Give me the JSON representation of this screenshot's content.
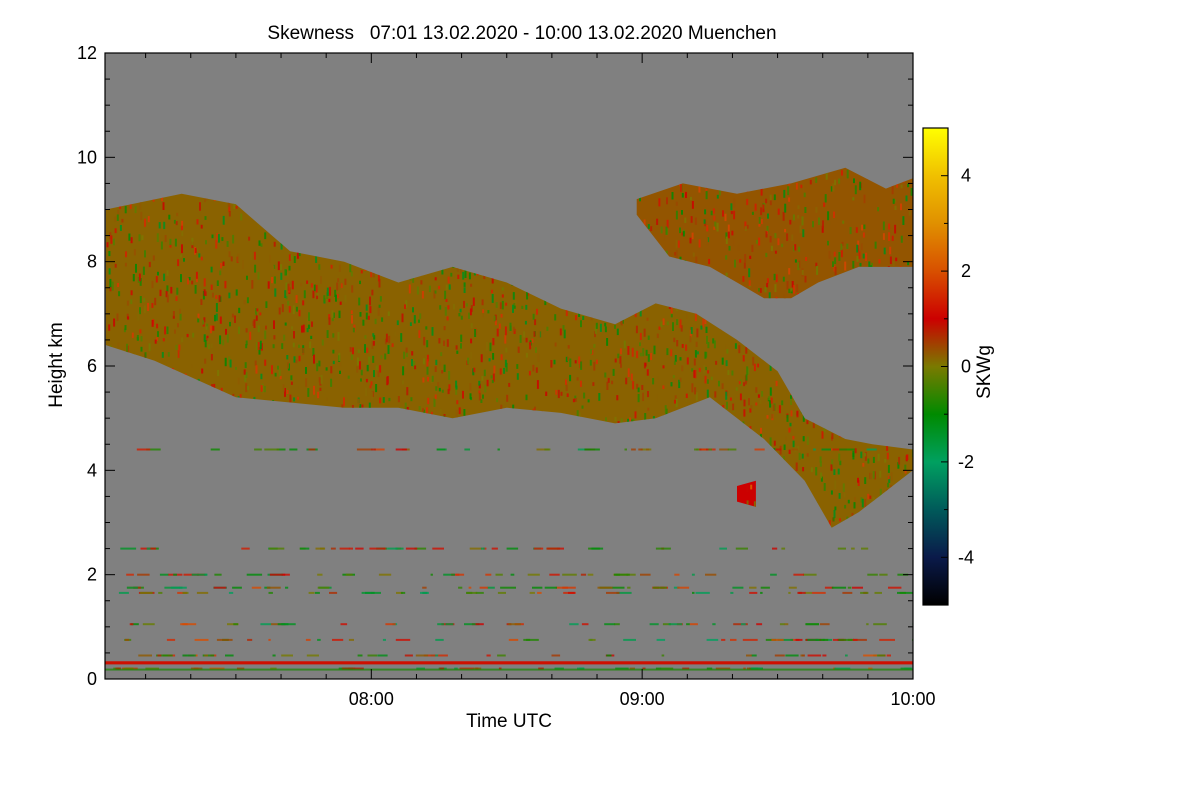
{
  "chart_data": {
    "type": "heatmap",
    "title": "Skewness   07:01 13.02.2020 - 10:00 13.02.2020 Muenchen",
    "xlabel": "Time UTC",
    "ylabel": "Height km",
    "colorbar_label": "SKWg",
    "x_range_hours": [
      7.0167,
      10.0
    ],
    "y_range_km": [
      0,
      12
    ],
    "x_ticks": [
      {
        "value": 8.0,
        "label": "08:00"
      },
      {
        "value": 9.0,
        "label": "09:00"
      },
      {
        "value": 10.0,
        "label": "10:00"
      }
    ],
    "y_ticks": [
      {
        "value": 0,
        "label": "0"
      },
      {
        "value": 2,
        "label": "2"
      },
      {
        "value": 4,
        "label": "4"
      },
      {
        "value": 6,
        "label": "6"
      },
      {
        "value": 8,
        "label": "8"
      },
      {
        "value": 10,
        "label": "10"
      },
      {
        "value": 12,
        "label": "12"
      }
    ],
    "colorbar_range": [
      -5,
      5
    ],
    "colorbar_ticks": [
      {
        "value": 4,
        "label": "4"
      },
      {
        "value": 2,
        "label": "2"
      },
      {
        "value": 0,
        "label": "0"
      },
      {
        "value": -2,
        "label": "-2"
      },
      {
        "value": -4,
        "label": "-4"
      }
    ],
    "colormap": [
      {
        "value": -5,
        "color": "#000000"
      },
      {
        "value": -4,
        "color": "#0a1a4a"
      },
      {
        "value": -3,
        "color": "#005a5a"
      },
      {
        "value": -2,
        "color": "#00a060"
      },
      {
        "value": -1,
        "color": "#008a00"
      },
      {
        "value": 0,
        "color": "#7a7a00"
      },
      {
        "value": 1,
        "color": "#cc0000"
      },
      {
        "value": 2,
        "color": "#d85000"
      },
      {
        "value": 3,
        "color": "#e09000"
      },
      {
        "value": 4,
        "color": "#f0c000"
      },
      {
        "value": 5,
        "color": "#ffff00"
      }
    ],
    "background_color": "#808080",
    "cloud_regions": [
      {
        "name": "main-cloud-layer",
        "mean_skewness": 0.2,
        "top_km": [
          [
            7.02,
            9.0
          ],
          [
            7.3,
            9.3
          ],
          [
            7.5,
            9.1
          ],
          [
            7.7,
            8.2
          ],
          [
            7.9,
            8.0
          ],
          [
            8.1,
            7.6
          ],
          [
            8.3,
            7.9
          ],
          [
            8.5,
            7.6
          ],
          [
            8.7,
            7.1
          ],
          [
            8.9,
            6.8
          ],
          [
            9.05,
            7.2
          ],
          [
            9.2,
            7.0
          ],
          [
            9.35,
            6.5
          ],
          [
            9.5,
            5.9
          ],
          [
            9.6,
            5.0
          ],
          [
            9.75,
            4.6
          ],
          [
            9.85,
            4.5
          ],
          [
            10.0,
            4.4
          ]
        ],
        "base_km": [
          [
            7.02,
            6.4
          ],
          [
            7.2,
            6.1
          ],
          [
            7.5,
            5.4
          ],
          [
            7.7,
            5.3
          ],
          [
            7.9,
            5.2
          ],
          [
            8.1,
            5.2
          ],
          [
            8.3,
            5.0
          ],
          [
            8.5,
            5.2
          ],
          [
            8.7,
            5.1
          ],
          [
            8.9,
            4.9
          ],
          [
            9.05,
            5.0
          ],
          [
            9.25,
            5.4
          ],
          [
            9.45,
            4.6
          ],
          [
            9.6,
            3.8
          ],
          [
            9.7,
            2.9
          ],
          [
            9.8,
            3.2
          ],
          [
            9.9,
            3.6
          ],
          [
            10.0,
            4.0
          ]
        ]
      },
      {
        "name": "upper-cloud-layer",
        "mean_skewness": 0.3,
        "top_km": [
          [
            8.98,
            9.2
          ],
          [
            9.15,
            9.5
          ],
          [
            9.35,
            9.3
          ],
          [
            9.55,
            9.5
          ],
          [
            9.75,
            9.8
          ],
          [
            9.9,
            9.4
          ],
          [
            10.0,
            9.6
          ]
        ],
        "base_km": [
          [
            8.98,
            8.9
          ],
          [
            9.1,
            8.1
          ],
          [
            9.25,
            7.9
          ],
          [
            9.35,
            7.6
          ],
          [
            9.45,
            7.3
          ],
          [
            9.55,
            7.3
          ],
          [
            9.65,
            7.6
          ],
          [
            9.8,
            7.9
          ],
          [
            10.0,
            7.9
          ]
        ]
      },
      {
        "name": "small-cloud-patch",
        "mean_skewness": 1.0,
        "top_km": [
          [
            9.35,
            3.7
          ],
          [
            9.42,
            3.8
          ]
        ],
        "base_km": [
          [
            9.35,
            3.4
          ],
          [
            9.42,
            3.3
          ]
        ]
      }
    ],
    "surface_band_km": [
      0.28,
      0.34
    ],
    "surface_band_skewness": 1.2
  }
}
